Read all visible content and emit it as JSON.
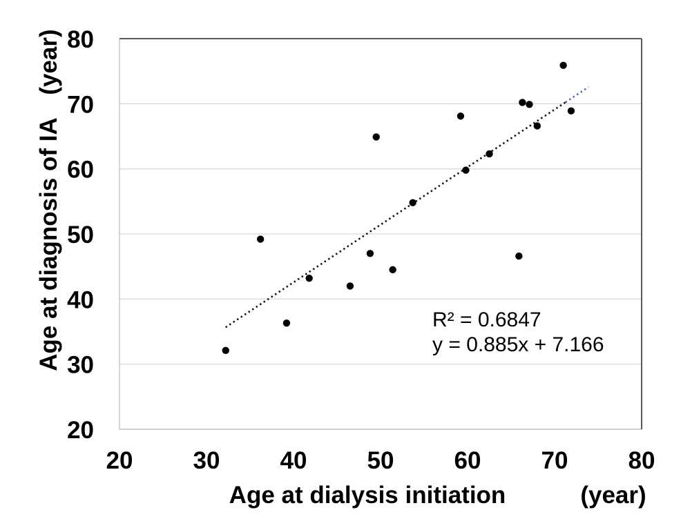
{
  "chart_data": {
    "type": "scatter",
    "title": "",
    "x_axis": {
      "label": "Age at dialysis initiation",
      "unit": "(year)",
      "min": 20,
      "max": 80,
      "tick_step": 10,
      "ticks": [
        20,
        30,
        40,
        50,
        60,
        70,
        80
      ]
    },
    "y_axis": {
      "label": "Age at diagnosis of IA",
      "unit": "(year)",
      "min": 20,
      "max": 80,
      "tick_step": 10,
      "ticks": [
        20,
        30,
        40,
        50,
        60,
        70,
        80
      ]
    },
    "points": [
      [
        32.2,
        32.1
      ],
      [
        36.2,
        49.2
      ],
      [
        39.2,
        36.3
      ],
      [
        41.8,
        43.2
      ],
      [
        46.5,
        42.0
      ],
      [
        48.8,
        47.0
      ],
      [
        49.5,
        64.9
      ],
      [
        51.4,
        44.5
      ],
      [
        53.7,
        54.8
      ],
      [
        59.2,
        68.1
      ],
      [
        59.8,
        59.8
      ],
      [
        62.5,
        62.3
      ],
      [
        65.9,
        46.6
      ],
      [
        66.3,
        70.2
      ],
      [
        67.1,
        69.9
      ],
      [
        68.0,
        66.6
      ],
      [
        71.0,
        75.9
      ],
      [
        71.9,
        68.9
      ]
    ],
    "trendline": {
      "style": "dotted",
      "slope": 0.885,
      "intercept": 7.166,
      "x_start": 32.2,
      "x_end": 73.9,
      "tail_x_start": 71.25,
      "color": "#0d0d0d",
      "tail_color": "#4a66b2"
    },
    "annotation": {
      "line1": "R² = 0.6847",
      "line2": "y = 0.885x + 7.166"
    },
    "grid": "horizontal",
    "legend": "none",
    "colors": {
      "point": "#000000",
      "gridline": "#d9d9d9",
      "border_dark": "#595959",
      "border_light": "#c4c4c4",
      "text": "#000000",
      "background": "#ffffff"
    }
  }
}
